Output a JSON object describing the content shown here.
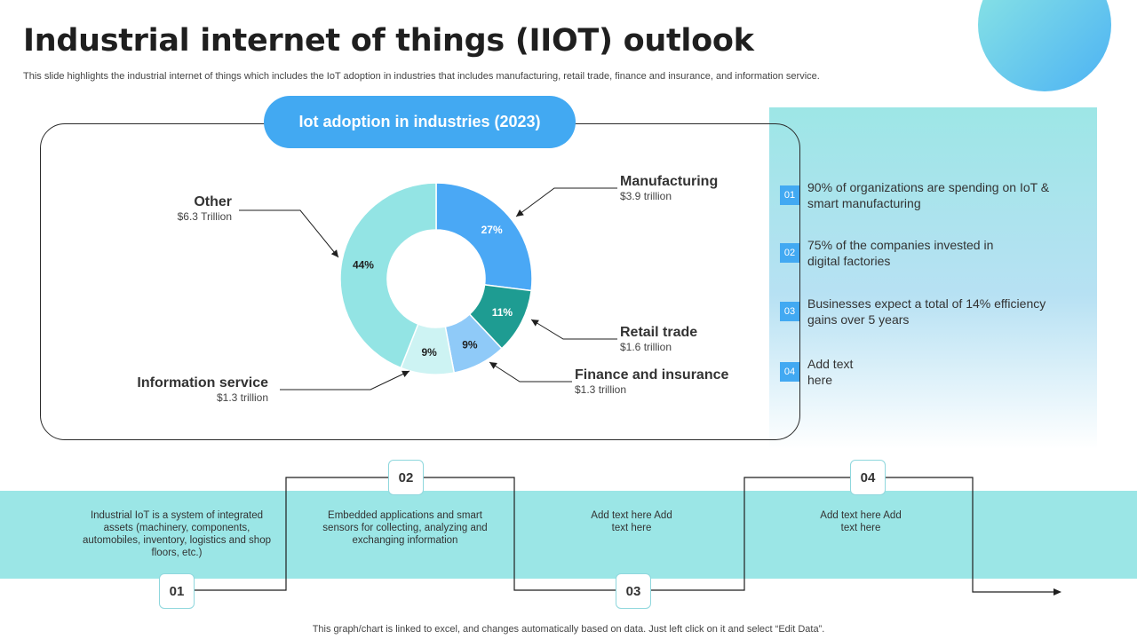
{
  "header": {
    "title": "Industrial internet of things (IIOT) outlook",
    "subtitle": "This slide highlights the industrial internet of things which includes the IoT adoption in industries that includes manufacturing, retail trade, finance and insurance, and information service."
  },
  "chart_pill": "Iot adoption in industries (2023)",
  "chart_data": {
    "type": "pie",
    "title": "Iot adoption in industries (2023)",
    "slices": [
      {
        "name": "Manufacturing",
        "value": 27,
        "value_label": "27%",
        "amount": "$3.9 trillion",
        "color": "#4aa8f5"
      },
      {
        "name": "Retail trade",
        "value": 11,
        "value_label": "11%",
        "amount": "$1.6 trillion",
        "color": "#1e9c92"
      },
      {
        "name": "Finance and insurance",
        "value": 9,
        "value_label": "9%",
        "amount": "$1.3 trillion",
        "color": "#8fcaf8"
      },
      {
        "name": "Information service",
        "value": 9,
        "value_label": "9%",
        "amount": "$1.3 trillion",
        "color": "#cdf3f3"
      },
      {
        "name": "Other",
        "value": 44,
        "value_label": "44%",
        "amount": "$6.3 Trillion",
        "color": "#93e4e4"
      }
    ]
  },
  "facts": [
    {
      "num": "01",
      "text": "90% of organizations are spending on IoT & smart manufacturing"
    },
    {
      "num": "02",
      "text": "75% of the companies invested in digital factories"
    },
    {
      "num": "03",
      "text": "Businesses expect a total of 14% efficiency gains over 5 years"
    },
    {
      "num": "04",
      "text": "Add text here"
    }
  ],
  "steps": [
    {
      "num": "01",
      "text": "Industrial IoT is a system of integrated assets (machinery, components, automobiles, inventory, logistics and shop floors, etc.)"
    },
    {
      "num": "02",
      "text": "Embedded applications and smart sensors for collecting, analyzing and exchanging information"
    },
    {
      "num": "03",
      "text": "Add text here Add text here"
    },
    {
      "num": "04",
      "text": "Add text here Add text here"
    }
  ],
  "footer": "This graph/chart is linked to excel,  and changes automatically based on data. Just left click on it and select “Edit Data”."
}
